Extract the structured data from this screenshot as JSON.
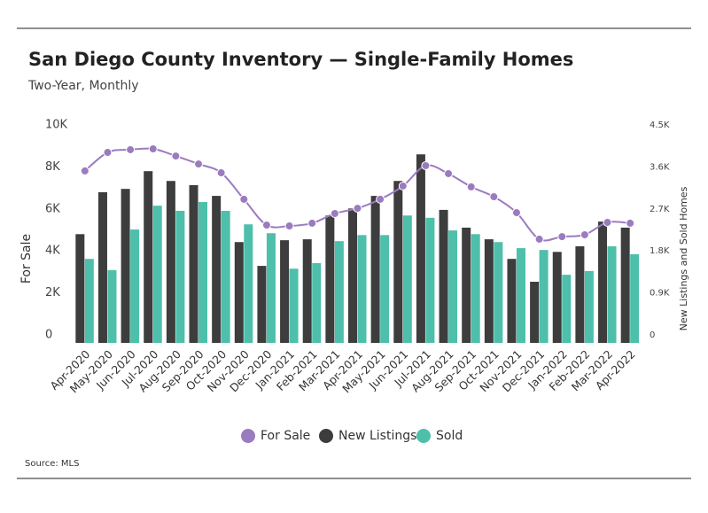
{
  "chart_data": {
    "type": "bar-line",
    "title": "San Diego County Inventory — Single-Family Homes",
    "subtitle": "Two-Year, Monthly",
    "y_label": "For Sale",
    "y2_label": "New Listings and Sold Homes",
    "source": "Source:  MLS",
    "categories": [
      "Apr-2020",
      "May-2020",
      "Jun-2020",
      "Jul-2020",
      "Aug-2020",
      "Sep-2020",
      "Oct-2020",
      "Nov-2020",
      "Dec-2020",
      "Jan-2021",
      "Feb-2021",
      "Mar-2021",
      "Apr-2021",
      "May-2021",
      "Jun-2021",
      "Jul-2021",
      "Aug-2021",
      "Sep-2021",
      "Oct-2021",
      "Nov-2021",
      "Dec-2021",
      "Jan-2022",
      "Feb-2022",
      "Mar-2022",
      "Apr-2022"
    ],
    "series": [
      {
        "name": "For Sale",
        "color": "#9b7bbf",
        "kind": "line",
        "axis": "y",
        "values": [
          8190,
          9070,
          9200,
          9240,
          8900,
          8520,
          8100,
          6840,
          5610,
          5570,
          5700,
          6160,
          6410,
          6840,
          7470,
          8440,
          8060,
          7430,
          6960,
          6200,
          4940,
          5060,
          5150,
          5740,
          5700
        ]
      },
      {
        "name": "New Listings",
        "color": "#3d3d3d",
        "kind": "bar",
        "axis": "y2",
        "values": [
          2330,
          3230,
          3300,
          3680,
          3470,
          3380,
          3150,
          2160,
          1650,
          2200,
          2220,
          2730,
          2880,
          3150,
          3470,
          4040,
          2850,
          2470,
          2220,
          1800,
          1310,
          1950,
          2070,
          2600,
          2470
        ]
      },
      {
        "name": "Sold",
        "color": "#4dbfaa",
        "kind": "bar",
        "axis": "y2",
        "values": [
          1800,
          1560,
          2430,
          2940,
          2830,
          3020,
          2830,
          2540,
          2350,
          1590,
          1710,
          2180,
          2310,
          2310,
          2730,
          2680,
          2410,
          2330,
          2160,
          2030,
          1990,
          1460,
          1540,
          2070,
          1900
        ]
      }
    ],
    "ylim": [
      0,
      10000
    ],
    "yticks": [
      {
        "value": 0,
        "label": "0"
      },
      {
        "value": 2000,
        "label": "2K"
      },
      {
        "value": 4000,
        "label": "4K"
      },
      {
        "value": 6000,
        "label": "6K"
      },
      {
        "value": 8000,
        "label": "8K"
      },
      {
        "value": 10000,
        "label": "10K"
      }
    ],
    "y2lim": [
      0,
      4500
    ],
    "y2ticks": [
      {
        "value": 0,
        "label": "0"
      },
      {
        "value": 900,
        "label": "0.9K"
      },
      {
        "value": 1800,
        "label": "1.8K"
      },
      {
        "value": 2700,
        "label": "2.7K"
      },
      {
        "value": 3600,
        "label": "3.6K"
      },
      {
        "value": 4500,
        "label": "4.5K"
      }
    ],
    "grid": false,
    "legend": "bottom"
  }
}
